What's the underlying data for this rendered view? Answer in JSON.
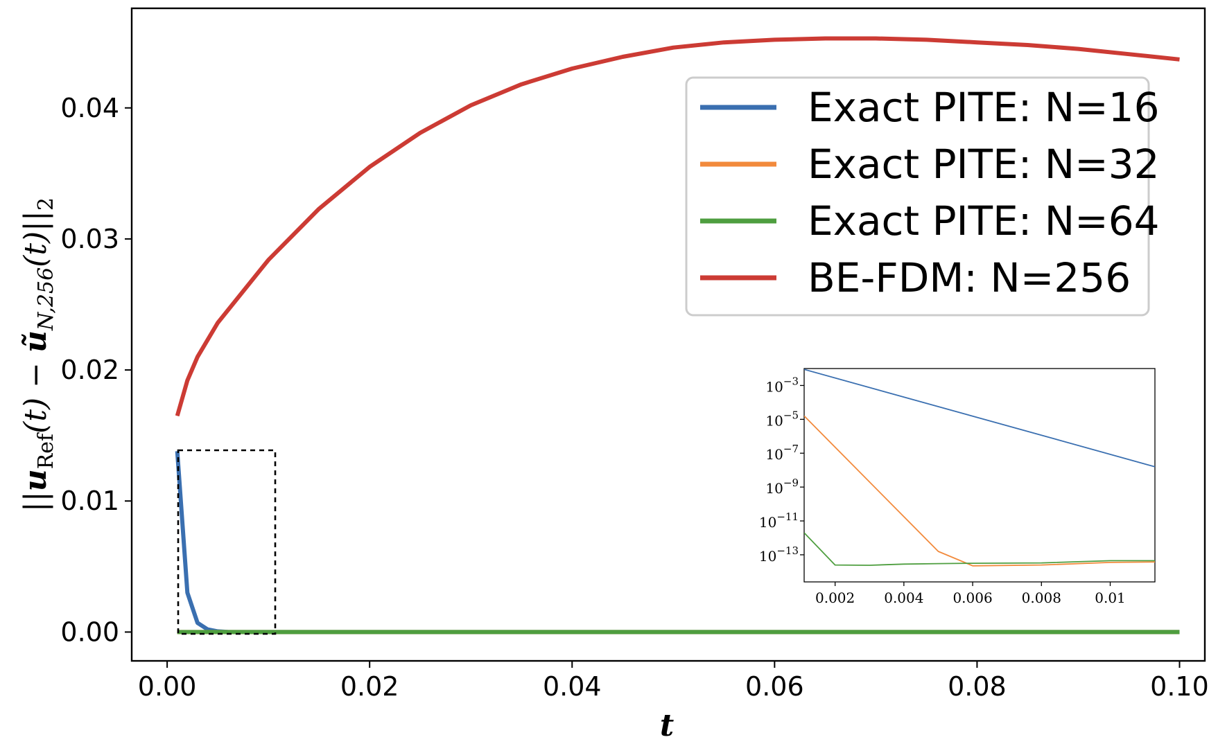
{
  "chart_data": [
    {
      "type": "line",
      "xlabel": "t",
      "ylabel": "||u_Ref(t) − ũ_N,256(t)||_2",
      "ylabel_parts": {
        "norm_open": "||",
        "u": "u",
        "ref": "Ref",
        "t1": "(t) − ",
        "u_tilde": "ũ",
        "n256": "N,256",
        "t2": "(t)",
        "norm_close": "||",
        "two": "2"
      },
      "xlim": [
        -0.0035,
        0.1025
      ],
      "ylim": [
        -0.0022,
        0.0476
      ],
      "xticks": [
        "0.00",
        "0.02",
        "0.04",
        "0.06",
        "0.08",
        "0.10"
      ],
      "xtick_values": [
        0,
        0.02,
        0.04,
        0.06,
        0.08,
        0.1
      ],
      "yticks": [
        "0.00",
        "0.01",
        "0.02",
        "0.03",
        "0.04"
      ],
      "ytick_values": [
        0,
        0.01,
        0.02,
        0.03,
        0.04
      ],
      "legend_position": "top-right",
      "series": [
        {
          "name": "Exact PITE: N=16",
          "color": "#3a6fb0",
          "x": [
            0.001,
            0.002,
            0.003,
            0.004,
            0.005,
            0.006,
            0.008,
            0.01,
            0.02,
            0.04,
            0.06,
            0.08,
            0.1
          ],
          "y": [
            0.0138,
            0.003,
            0.0007,
            0.0002,
            5e-05,
            1e-05,
            0,
            0,
            0,
            0,
            0,
            0,
            0
          ]
        },
        {
          "name": "Exact PITE: N=32",
          "color": "#f28a3c",
          "x": [
            0.001,
            0.1
          ],
          "y": [
            0,
            0
          ]
        },
        {
          "name": "Exact PITE: N=64",
          "color": "#4e9e3f",
          "x": [
            0.001,
            0.1
          ],
          "y": [
            0,
            0
          ]
        },
        {
          "name": "BE-FDM: N=256",
          "color": "#cc3b34",
          "x": [
            0.001,
            0.002,
            0.003,
            0.005,
            0.0075,
            0.01,
            0.015,
            0.02,
            0.025,
            0.03,
            0.035,
            0.04,
            0.045,
            0.05,
            0.055,
            0.06,
            0.065,
            0.07,
            0.075,
            0.08,
            0.085,
            0.09,
            0.095,
            0.1
          ],
          "y": [
            0.0165,
            0.0192,
            0.021,
            0.0236,
            0.026,
            0.0284,
            0.0323,
            0.0355,
            0.0381,
            0.0402,
            0.0418,
            0.043,
            0.0439,
            0.0446,
            0.045,
            0.0452,
            0.0453,
            0.0453,
            0.0452,
            0.045,
            0.0448,
            0.0445,
            0.0441,
            0.0437
          ]
        }
      ]
    },
    {
      "type": "line",
      "title": "",
      "yscale": "log",
      "xlim": [
        0.0011,
        0.0113
      ],
      "ylim_log10": [
        -14.6,
        -2.0
      ],
      "xticks": [
        "0.002",
        "0.004",
        "0.006",
        "0.008",
        "0.01"
      ],
      "xtick_values": [
        0.002,
        0.004,
        0.006,
        0.008,
        0.01
      ],
      "yticks_base": "10",
      "yticks_exp": [
        "−3",
        "−5",
        "−7",
        "−9",
        "−11",
        "−13"
      ],
      "ytick_values_log10": [
        -3,
        -5,
        -7,
        -9,
        -11,
        -13
      ],
      "series": [
        {
          "name": "Exact PITE: N=16",
          "color": "#3a6fb0",
          "x": [
            0.0011,
            0.0113
          ],
          "log10_y": [
            -2.05,
            -7.8
          ]
        },
        {
          "name": "Exact PITE: N=32",
          "color": "#f28a3c",
          "x": [
            0.0011,
            0.005,
            0.006,
            0.008,
            0.01,
            0.0113
          ],
          "log10_y": [
            -4.8,
            -12.8,
            -13.65,
            -13.6,
            -13.45,
            -13.42
          ]
        },
        {
          "name": "Exact PITE: N=64",
          "color": "#4e9e3f",
          "x": [
            0.0011,
            0.002,
            0.003,
            0.004,
            0.005,
            0.006,
            0.008,
            0.01,
            0.0113
          ],
          "log10_y": [
            -11.7,
            -13.6,
            -13.62,
            -13.55,
            -13.52,
            -13.5,
            -13.48,
            -13.35,
            -13.35
          ]
        }
      ]
    }
  ]
}
